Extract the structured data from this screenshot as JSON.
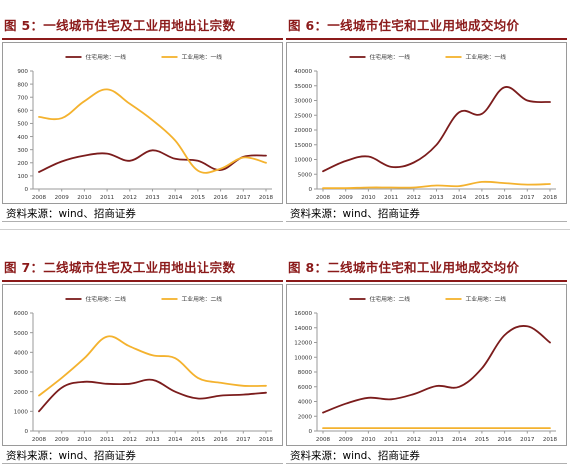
{
  "colors": {
    "accent": "#8b1a1a",
    "residential": "#7b1c1c",
    "industrial": "#f4b22e"
  },
  "charts": [
    {
      "id": "p5",
      "title": "图 5：一线城市住宅及工业用地出让宗数",
      "source": "资料来源：wind、招商证券",
      "chart_data": {
        "type": "line",
        "x": [
          2008,
          2009,
          2010,
          2011,
          2012,
          2013,
          2014,
          2015,
          2016,
          2017,
          2018
        ],
        "ylim": [
          0,
          900
        ],
        "yticks": [
          0,
          100,
          200,
          300,
          400,
          500,
          600,
          700,
          800,
          900
        ],
        "ytick_labels": [
          "0",
          "100",
          "200",
          "300",
          "400",
          "500",
          "600",
          "700",
          "800",
          "900"
        ],
        "series": [
          {
            "name": "住宅用地：一线",
            "values": [
              130,
              210,
              255,
              270,
              215,
              295,
              230,
              215,
              145,
              245,
              255
            ]
          },
          {
            "name": "工业用地：一线",
            "values": [
              550,
              540,
              670,
              760,
              650,
              525,
              370,
              140,
              155,
              240,
              200
            ]
          }
        ],
        "legend": "top"
      }
    },
    {
      "id": "p6",
      "title": "图 6：一线城市住宅和工业用地成交均价",
      "source": "资料来源：wind、招商证券",
      "chart_data": {
        "type": "line",
        "x": [
          2008,
          2009,
          2010,
          2011,
          2012,
          2013,
          2014,
          2015,
          2016,
          2017,
          2018
        ],
        "ylim": [
          0,
          40000
        ],
        "yticks": [
          0,
          5000,
          10000,
          15000,
          20000,
          25000,
          30000,
          35000,
          40000
        ],
        "ytick_labels": [
          "0",
          "5000",
          "10000",
          "15000",
          "20000",
          "25000",
          "30000",
          "35000",
          "40000"
        ],
        "series": [
          {
            "name": "住宅用地：一线",
            "values": [
              6000,
              9500,
              11000,
              7500,
              9000,
              15000,
              26000,
              25500,
              34500,
              30000,
              29500
            ]
          },
          {
            "name": "工业用地：一线",
            "values": [
              300,
              300,
              500,
              500,
              500,
              1200,
              1000,
              2400,
              2000,
              1500,
              1700
            ]
          }
        ],
        "legend": "top"
      }
    },
    {
      "id": "p7",
      "title": "图 7：二线城市住宅及工业用地出让宗数",
      "source": "资料来源：wind、招商证券",
      "chart_data": {
        "type": "line",
        "x": [
          2008,
          2009,
          2010,
          2011,
          2012,
          2013,
          2014,
          2015,
          2016,
          2017,
          2018
        ],
        "ylim": [
          0,
          6000
        ],
        "yticks": [
          0,
          1000,
          2000,
          3000,
          4000,
          5000,
          6000
        ],
        "ytick_labels": [
          "0",
          "1000",
          "2000",
          "3000",
          "4000",
          "5000",
          "6000"
        ],
        "series": [
          {
            "name": "住宅用地：二线",
            "values": [
              1000,
              2200,
              2500,
              2400,
              2400,
              2600,
              2000,
              1650,
              1800,
              1850,
              1950
            ]
          },
          {
            "name": "工业用地：二线",
            "values": [
              1800,
              2700,
              3700,
              4800,
              4300,
              3850,
              3700,
              2700,
              2450,
              2300,
              2300
            ]
          }
        ],
        "legend": "top"
      }
    },
    {
      "id": "p8",
      "title": "图 8：二线城市住宅和工业用地成交均价",
      "source": "资料来源：wind、招商证券",
      "chart_data": {
        "type": "line",
        "x": [
          2008,
          2009,
          2010,
          2011,
          2012,
          2013,
          2014,
          2015,
          2016,
          2017,
          2018
        ],
        "ylim": [
          0,
          16000
        ],
        "yticks": [
          0,
          2000,
          4000,
          6000,
          8000,
          10000,
          12000,
          14000,
          16000
        ],
        "ytick_labels": [
          "0",
          "2000",
          "4000",
          "6000",
          "8000",
          "10000",
          "12000",
          "14000",
          "16000"
        ],
        "series": [
          {
            "name": "住宅用地：二线",
            "values": [
              2500,
              3700,
              4500,
              4300,
              5000,
              6100,
              6000,
              8500,
              13000,
              14200,
              12000
            ]
          },
          {
            "name": "工业用地：二线",
            "values": [
              400,
              400,
              400,
              400,
              400,
              400,
              400,
              400,
              400,
              400,
              400
            ]
          }
        ],
        "legend": "top"
      }
    }
  ]
}
